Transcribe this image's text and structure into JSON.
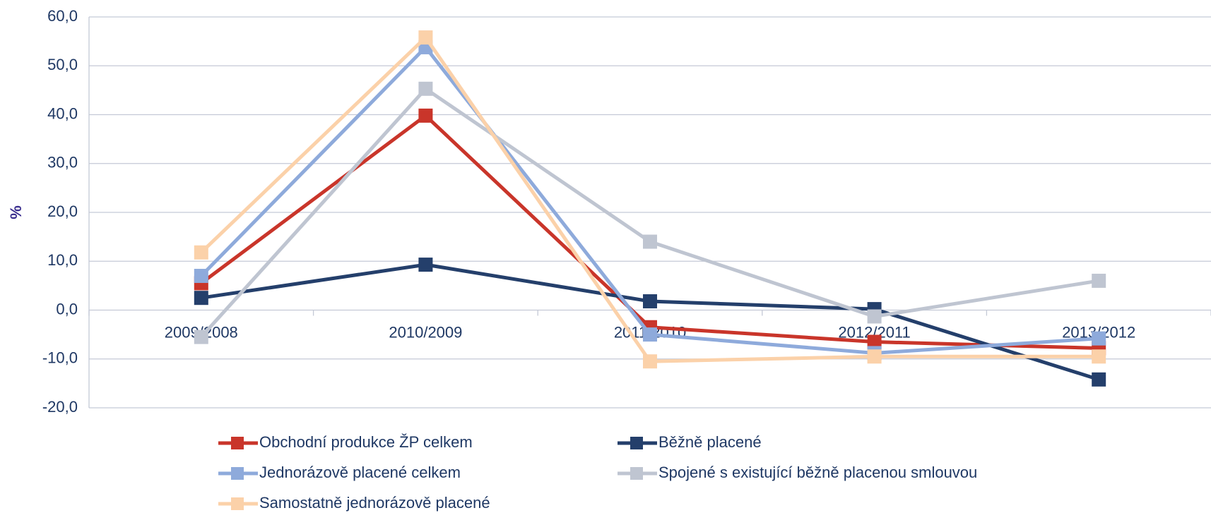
{
  "chart_data": {
    "type": "line",
    "y_label": "%",
    "categories": [
      "2009/2008",
      "2010/2009",
      "2011/2010",
      "2012/2011",
      "2013/2012"
    ],
    "series": [
      {
        "name": "Obchodní produkce ŽP celkem",
        "color": "#c9352a",
        "values": [
          5.5,
          39.8,
          -3.5,
          -6.5,
          -7.8
        ]
      },
      {
        "name": "Běžně placené",
        "color": "#243f6b",
        "values": [
          2.5,
          9.3,
          1.8,
          0.2,
          -14.2
        ]
      },
      {
        "name": "Jednorázově placené celkem",
        "color": "#8eaadb",
        "values": [
          7.0,
          53.8,
          -5.0,
          -8.8,
          -5.8
        ]
      },
      {
        "name": "Spojené s existující běžně placenou smlouvou",
        "color": "#bfc5d1",
        "values": [
          -5.5,
          45.3,
          14.0,
          -1.3,
          6.0
        ]
      },
      {
        "name": "Samostatně jednorázově placené",
        "color": "#fbd1a9",
        "values": [
          11.8,
          55.8,
          -10.5,
          -9.5,
          -9.5
        ]
      }
    ],
    "ylim": [
      -20,
      60
    ],
    "yticks": [
      {
        "value": -20,
        "label": "-20,0"
      },
      {
        "value": -10,
        "label": "-10,0"
      },
      {
        "value": 0,
        "label": "0,0"
      },
      {
        "value": 10,
        "label": "10,0"
      },
      {
        "value": 20,
        "label": "20,0"
      },
      {
        "value": 30,
        "label": "30,0"
      },
      {
        "value": 40,
        "label": "40,0"
      },
      {
        "value": 50,
        "label": "50,0"
      },
      {
        "value": 60,
        "label": "60,0"
      }
    ],
    "grid": true
  }
}
